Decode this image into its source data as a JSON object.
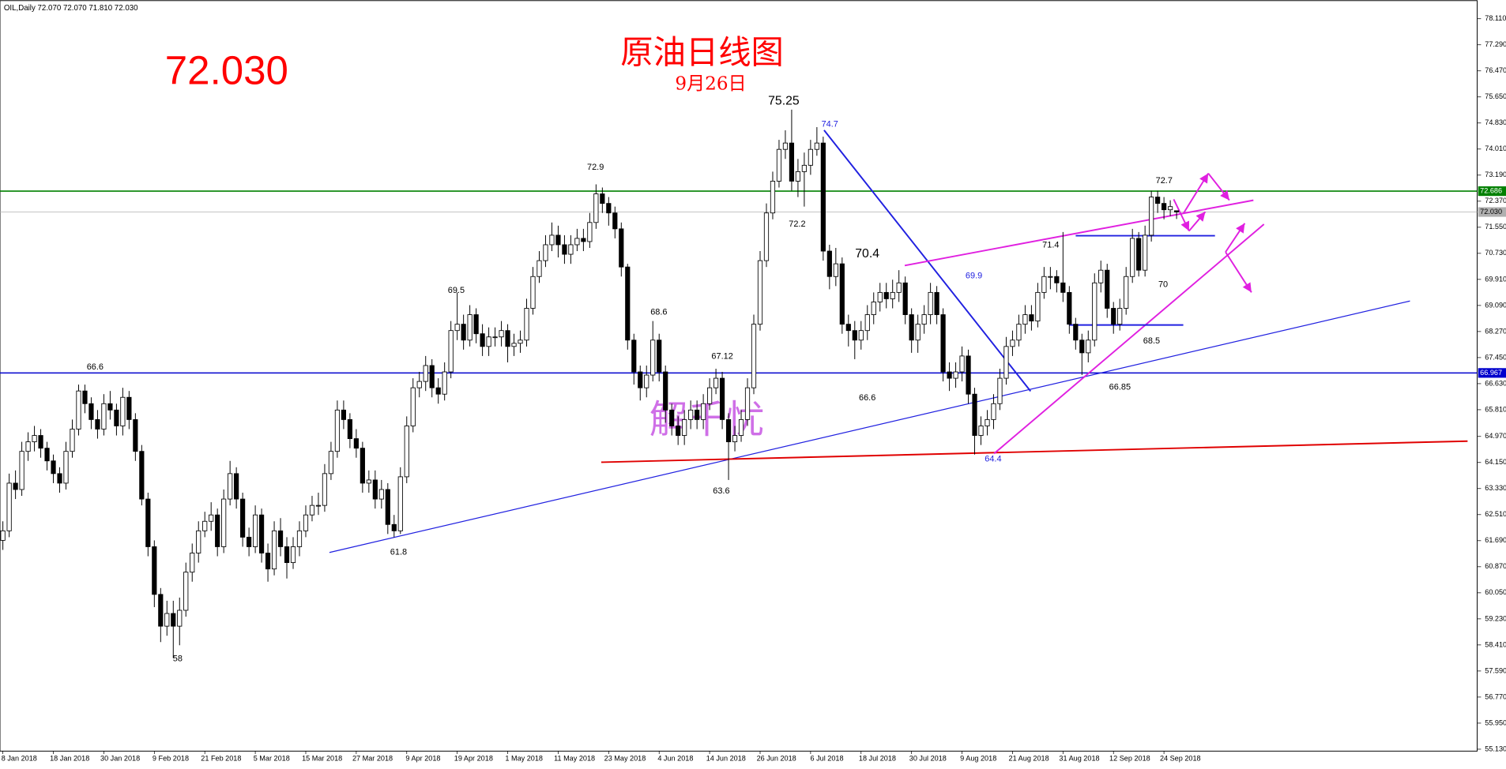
{
  "chart_data": {
    "type": "candlestick",
    "header": "OIL,Daily  72.070 72.070 71.810 72.030",
    "title": "原油日线图",
    "subtitle": "9月26日",
    "last_price": "72.030",
    "watermark": "解千忧",
    "up_color": "#ffffff",
    "down_color": "#000000",
    "ylim": [
      55.07,
      78.68
    ],
    "yticks": [
      {
        "value": 78.11,
        "label": "78.110"
      },
      {
        "value": 77.29,
        "label": "77.290"
      },
      {
        "value": 76.47,
        "label": "76.470"
      },
      {
        "value": 75.65,
        "label": "75.650"
      },
      {
        "value": 74.83,
        "label": "74.830"
      },
      {
        "value": 74.01,
        "label": "74.010"
      },
      {
        "value": 73.19,
        "label": "73.190"
      },
      {
        "value": 72.37,
        "label": "72.370"
      },
      {
        "value": 71.55,
        "label": "71.550"
      },
      {
        "value": 70.73,
        "label": "70.730"
      },
      {
        "value": 69.91,
        "label": "69.910"
      },
      {
        "value": 69.09,
        "label": "69.090"
      },
      {
        "value": 68.27,
        "label": "68.270"
      },
      {
        "value": 67.45,
        "label": "67.450"
      },
      {
        "value": 66.63,
        "label": "66.630"
      },
      {
        "value": 65.81,
        "label": "65.810"
      },
      {
        "value": 64.97,
        "label": "64.970"
      },
      {
        "value": 64.15,
        "label": "64.150"
      },
      {
        "value": 63.33,
        "label": "63.330"
      },
      {
        "value": 62.51,
        "label": "62.510"
      },
      {
        "value": 61.69,
        "label": "61.690"
      },
      {
        "value": 60.87,
        "label": "60.870"
      },
      {
        "value": 60.05,
        "label": "60.050"
      },
      {
        "value": 59.23,
        "label": "59.230"
      },
      {
        "value": 58.41,
        "label": "58.410"
      },
      {
        "value": 57.59,
        "label": "57.590"
      },
      {
        "value": 56.77,
        "label": "56.770"
      },
      {
        "value": 55.95,
        "label": "55.950"
      },
      {
        "value": 55.13,
        "label": "55.130"
      }
    ],
    "hlines": [
      {
        "value": 72.686,
        "color": "#008000"
      },
      {
        "value": 72.03,
        "label": "72.030",
        "color": "#b0b0b0"
      },
      {
        "value": 66.967,
        "color": "#0000cd"
      }
    ],
    "annotations": [
      {
        "text": "72.9",
        "color": "#000"
      },
      {
        "text": "66.6",
        "color": "#000"
      },
      {
        "text": "69.5",
        "color": "#000"
      },
      {
        "text": "68.6",
        "color": "#000"
      },
      {
        "text": "67.12",
        "color": "#000"
      },
      {
        "text": "75.25",
        "color": "#000"
      },
      {
        "text": "72.2",
        "color": "#000"
      },
      {
        "text": "70.4",
        "color": "#000"
      },
      {
        "text": "74.7",
        "color": "#2020e0"
      },
      {
        "text": "69.9",
        "color": "#2020e0"
      },
      {
        "text": "71.4",
        "color": "#000"
      },
      {
        "text": "72.7",
        "color": "#000"
      },
      {
        "text": "70",
        "color": "#000"
      },
      {
        "text": "68.5",
        "color": "#000"
      },
      {
        "text": "66.85",
        "color": "#000"
      },
      {
        "text": "64.4",
        "color": "#2020e0"
      },
      {
        "text": "63.6",
        "color": "#000"
      },
      {
        "text": "61.8",
        "color": "#000"
      },
      {
        "text": "58",
        "color": "#000"
      },
      {
        "text": "66.6",
        "color": "#000"
      }
    ],
    "categories": [
      "8 Jan 2018",
      null,
      null,
      null,
      null,
      null,
      null,
      null,
      "18 Jan 2018",
      null,
      null,
      null,
      null,
      null,
      null,
      null,
      "30 Jan 2018",
      null,
      null,
      null,
      null,
      null,
      null,
      null,
      "9 Feb 2018",
      null,
      null,
      null,
      null,
      null,
      null,
      null,
      "21 Feb 2018",
      null,
      null,
      null,
      null,
      null,
      null,
      null,
      "5 Mar 2018",
      null,
      null,
      null,
      null,
      null,
      null,
      null,
      "15 Mar 2018",
      null,
      null,
      null,
      null,
      null,
      null,
      null,
      "27 Mar 2018",
      null,
      null,
      null,
      null,
      null,
      null,
      null,
      "9 Apr 2018",
      null,
      null,
      null,
      null,
      null,
      null,
      null,
      "19 Apr 2018",
      null,
      null,
      null,
      null,
      null,
      null,
      null,
      "1 May 2018",
      null,
      null,
      null,
      null,
      null,
      null,
      null,
      "11 May 2018",
      null,
      null,
      null,
      null,
      null,
      null,
      null,
      "23 May 2018",
      null,
      null,
      null,
      null,
      null,
      null,
      null,
      "4 Jun 2018",
      null,
      null,
      null,
      null,
      null,
      null,
      null,
      "14 Jun 2018",
      null,
      null,
      null,
      null,
      null,
      null,
      null,
      "26 Jun 2018",
      null,
      null,
      null,
      null,
      null,
      null,
      null,
      "6 Jul 2018",
      null,
      null,
      null,
      null,
      null,
      null,
      null,
      "18 Jul 2018",
      null,
      null,
      null,
      null,
      null,
      null,
      null,
      "30 Jul 2018",
      null,
      null,
      null,
      null,
      null,
      null,
      null,
      "9 Aug 2018",
      null,
      null,
      null,
      null,
      null,
      null,
      null,
      "21 Aug 2018",
      null,
      null,
      null,
      null,
      null,
      null,
      null,
      "31 Aug 2018",
      null,
      null,
      null,
      null,
      null,
      null,
      null,
      "12 Sep 2018",
      null,
      null,
      null,
      null,
      null,
      null,
      null,
      "24 Sep 2018",
      null,
      null
    ],
    "open": [
      61.7,
      62.0,
      63.5,
      63.3,
      64.5,
      64.8,
      65.0,
      64.6,
      64.2,
      63.8,
      63.5,
      64.5,
      65.2,
      66.4,
      66.0,
      65.5,
      65.2,
      66.0,
      65.8,
      65.3,
      66.2,
      65.5,
      64.5,
      63.0,
      61.5,
      60.0,
      59.0,
      59.4,
      59.0,
      59.5,
      60.7,
      61.3,
      62.0,
      62.3,
      62.5,
      61.5,
      63.0,
      63.8,
      63.0,
      61.8,
      61.5,
      62.5,
      61.3,
      60.8,
      62.0,
      61.5,
      61.0,
      61.5,
      62.0,
      62.5,
      62.8,
      62.8,
      63.8,
      64.5,
      65.8,
      65.5,
      64.9,
      64.6,
      63.5,
      63.6,
      63.0,
      63.3,
      62.2,
      62.0,
      63.7,
      65.3,
      66.5,
      66.7,
      67.2,
      66.5,
      66.3,
      67.0,
      68.3,
      68.5,
      68.0,
      68.8,
      68.2,
      67.8,
      68.1,
      68.1,
      68.3,
      67.8,
      67.9,
      68.0,
      69.0,
      70.0,
      70.5,
      71.0,
      71.3,
      71.0,
      70.7,
      71.0,
      71.2,
      71.1,
      71.7,
      72.6,
      72.3,
      72.0,
      71.5,
      70.3,
      68.0,
      67.0,
      66.5,
      66.9,
      68.0,
      67.0,
      65.8,
      65.3,
      65.0,
      65.5,
      65.8,
      65.5,
      66.0,
      66.5,
      66.8,
      65.5,
      64.8,
      65.0,
      65.5,
      66.5,
      68.5,
      70.5,
      72.0,
      73.0,
      74.0,
      74.2,
      73.0,
      73.3,
      73.5,
      74.0,
      74.2,
      70.8,
      70.0,
      70.4,
      68.5,
      68.3,
      68.0,
      68.3,
      68.8,
      69.2,
      69.5,
      69.3,
      69.5,
      69.8,
      68.8,
      68.0,
      68.5,
      68.8,
      69.5,
      68.8,
      67.0,
      66.8,
      67.0,
      67.5,
      66.3,
      65.0,
      65.3,
      65.5,
      66.0,
      66.8,
      67.8,
      68.0,
      68.5,
      68.8,
      68.6,
      69.5,
      70.0,
      70.0,
      69.8,
      69.5,
      68.5,
      68.0,
      67.6,
      68.0,
      69.8,
      70.2,
      69.0,
      68.5,
      69.0,
      70.0,
      71.2,
      70.2,
      71.3,
      72.5,
      72.3,
      72.1,
      72.07
    ],
    "high": [
      62.3,
      63.8,
      63.9,
      64.8,
      65.1,
      65.3,
      65.2,
      64.8,
      64.4,
      64.0,
      64.8,
      65.5,
      66.6,
      66.6,
      66.2,
      65.8,
      66.3,
      66.4,
      66.0,
      66.5,
      66.4,
      65.7,
      64.7,
      63.2,
      61.7,
      60.2,
      59.8,
      59.8,
      59.9,
      61.0,
      61.6,
      62.3,
      62.6,
      62.9,
      62.7,
      63.3,
      64.2,
      64.0,
      63.2,
      62.1,
      62.8,
      62.7,
      61.6,
      62.3,
      62.4,
      61.8,
      61.8,
      62.3,
      62.8,
      63.1,
      63.2,
      64.1,
      64.8,
      66.1,
      66.1,
      65.7,
      65.2,
      64.8,
      63.9,
      63.9,
      63.6,
      63.5,
      62.5,
      64.0,
      65.6,
      66.8,
      67.0,
      67.5,
      67.4,
      66.8,
      67.3,
      68.6,
      69.5,
      68.8,
      69.1,
      69.0,
      68.5,
      68.4,
      68.4,
      68.6,
      68.5,
      68.2,
      68.3,
      69.3,
      70.3,
      70.8,
      71.3,
      71.7,
      71.6,
      71.3,
      71.3,
      71.5,
      71.5,
      72.0,
      72.9,
      72.8,
      72.5,
      72.2,
      71.7,
      70.4,
      68.2,
      67.2,
      67.2,
      68.6,
      68.2,
      67.2,
      66.0,
      65.6,
      65.8,
      66.1,
      66.1,
      66.3,
      66.8,
      67.1,
      67.0,
      65.7,
      65.3,
      65.8,
      66.8,
      68.8,
      70.8,
      72.3,
      73.3,
      74.3,
      74.6,
      75.25,
      73.7,
      73.9,
      74.3,
      74.7,
      74.4,
      71.0,
      70.9,
      70.6,
      68.8,
      68.6,
      68.6,
      69.1,
      69.5,
      69.8,
      69.8,
      69.9,
      70.2,
      70.0,
      69.0,
      68.8,
      69.1,
      69.8,
      69.7,
      69.0,
      67.3,
      67.3,
      67.8,
      67.7,
      66.5,
      65.6,
      65.8,
      66.3,
      67.1,
      68.1,
      68.3,
      68.8,
      69.1,
      69.1,
      69.8,
      70.3,
      70.3,
      70.2,
      71.4,
      69.7,
      68.7,
      68.2,
      68.3,
      70.1,
      70.5,
      70.4,
      69.2,
      69.3,
      70.3,
      71.5,
      71.4,
      71.6,
      72.7,
      72.7,
      72.5,
      72.4,
      72.07
    ],
    "low": [
      61.4,
      61.8,
      63.0,
      63.1,
      64.2,
      64.5,
      64.3,
      63.9,
      63.5,
      63.2,
      63.3,
      64.3,
      65.0,
      65.7,
      65.2,
      64.9,
      65.0,
      65.5,
      65.0,
      65.0,
      65.2,
      64.2,
      62.8,
      61.2,
      59.6,
      58.5,
      58.7,
      58.0,
      58.4,
      59.3,
      60.4,
      61.0,
      61.8,
      62.0,
      61.2,
      61.3,
      62.8,
      62.7,
      61.5,
      61.2,
      61.3,
      61.0,
      60.4,
      60.6,
      61.2,
      60.5,
      60.8,
      61.2,
      61.8,
      62.3,
      62.5,
      62.6,
      63.6,
      64.3,
      65.2,
      64.6,
      64.3,
      63.2,
      63.2,
      62.7,
      62.7,
      61.9,
      61.8,
      61.9,
      63.5,
      65.1,
      66.2,
      66.4,
      66.2,
      66.0,
      66.1,
      66.8,
      68.0,
      67.7,
      67.8,
      67.9,
      67.5,
      67.5,
      67.8,
      67.8,
      67.3,
      67.5,
      67.6,
      67.8,
      68.8,
      69.8,
      70.3,
      70.8,
      70.6,
      70.4,
      70.4,
      70.8,
      70.8,
      70.9,
      71.5,
      72.0,
      71.6,
      71.2,
      70.0,
      67.7,
      66.6,
      66.1,
      66.2,
      66.7,
      66.7,
      65.4,
      65.0,
      64.7,
      64.7,
      65.2,
      65.2,
      65.2,
      65.8,
      66.3,
      65.2,
      63.6,
      64.5,
      64.8,
      65.3,
      66.3,
      68.3,
      70.3,
      71.8,
      72.8,
      73.7,
      72.7,
      72.5,
      72.2,
      73.2,
      73.8,
      70.5,
      69.6,
      69.7,
      68.2,
      67.8,
      67.4,
      67.7,
      68.0,
      68.5,
      68.9,
      69.0,
      69.0,
      69.2,
      68.5,
      67.6,
      67.6,
      68.2,
      68.5,
      68.5,
      66.7,
      66.4,
      66.5,
      66.7,
      66.0,
      64.4,
      64.7,
      65.0,
      65.2,
      65.8,
      66.6,
      67.5,
      67.8,
      68.2,
      68.3,
      68.4,
      69.3,
      69.6,
      69.5,
      69.2,
      68.2,
      67.7,
      66.9,
      67.3,
      67.8,
      69.5,
      68.7,
      68.2,
      68.3,
      68.8,
      69.8,
      70.0,
      70.0,
      71.1,
      72.0,
      71.8,
      71.9,
      71.81
    ],
    "close": [
      62.0,
      63.5,
      63.3,
      64.5,
      64.8,
      65.0,
      64.6,
      64.2,
      63.8,
      63.5,
      64.5,
      65.2,
      66.4,
      66.0,
      65.5,
      65.2,
      66.0,
      65.8,
      65.3,
      66.2,
      65.5,
      64.5,
      63.0,
      61.5,
      60.0,
      59.0,
      59.4,
      59.0,
      59.5,
      60.7,
      61.3,
      62.0,
      62.3,
      62.5,
      61.5,
      63.0,
      63.8,
      63.0,
      61.8,
      61.5,
      62.5,
      61.3,
      60.8,
      62.0,
      61.5,
      61.0,
      61.5,
      62.0,
      62.5,
      62.8,
      62.8,
      63.8,
      64.5,
      65.8,
      65.5,
      64.9,
      64.6,
      63.5,
      63.6,
      63.0,
      63.3,
      62.2,
      62.0,
      63.7,
      65.3,
      66.5,
      66.7,
      67.2,
      66.5,
      66.3,
      67.0,
      68.3,
      68.5,
      68.0,
      68.8,
      68.2,
      67.8,
      68.1,
      68.1,
      68.3,
      67.8,
      67.9,
      68.0,
      69.0,
      70.0,
      70.5,
      71.0,
      71.3,
      71.0,
      70.7,
      71.0,
      71.2,
      71.1,
      71.7,
      72.6,
      72.3,
      72.0,
      71.5,
      70.3,
      68.0,
      67.0,
      66.5,
      66.9,
      68.0,
      67.0,
      65.8,
      65.3,
      65.0,
      65.5,
      65.8,
      65.5,
      66.0,
      66.5,
      66.8,
      65.5,
      64.8,
      65.0,
      65.5,
      66.5,
      68.5,
      70.5,
      72.0,
      73.0,
      74.0,
      74.2,
      73.0,
      73.3,
      73.5,
      74.0,
      74.2,
      70.8,
      70.0,
      70.4,
      68.5,
      68.3,
      68.0,
      68.3,
      68.8,
      69.2,
      69.5,
      69.3,
      69.5,
      69.8,
      68.8,
      68.0,
      68.5,
      68.8,
      69.5,
      68.8,
      67.0,
      66.8,
      67.0,
      67.5,
      66.3,
      65.0,
      65.3,
      65.5,
      66.0,
      66.8,
      67.8,
      68.0,
      68.5,
      68.8,
      68.6,
      69.5,
      70.0,
      70.0,
      69.8,
      69.5,
      68.5,
      68.0,
      67.6,
      68.0,
      69.8,
      70.2,
      69.0,
      68.5,
      69.0,
      70.0,
      71.2,
      70.2,
      71.3,
      72.5,
      72.3,
      72.1,
      72.2,
      72.03
    ]
  }
}
